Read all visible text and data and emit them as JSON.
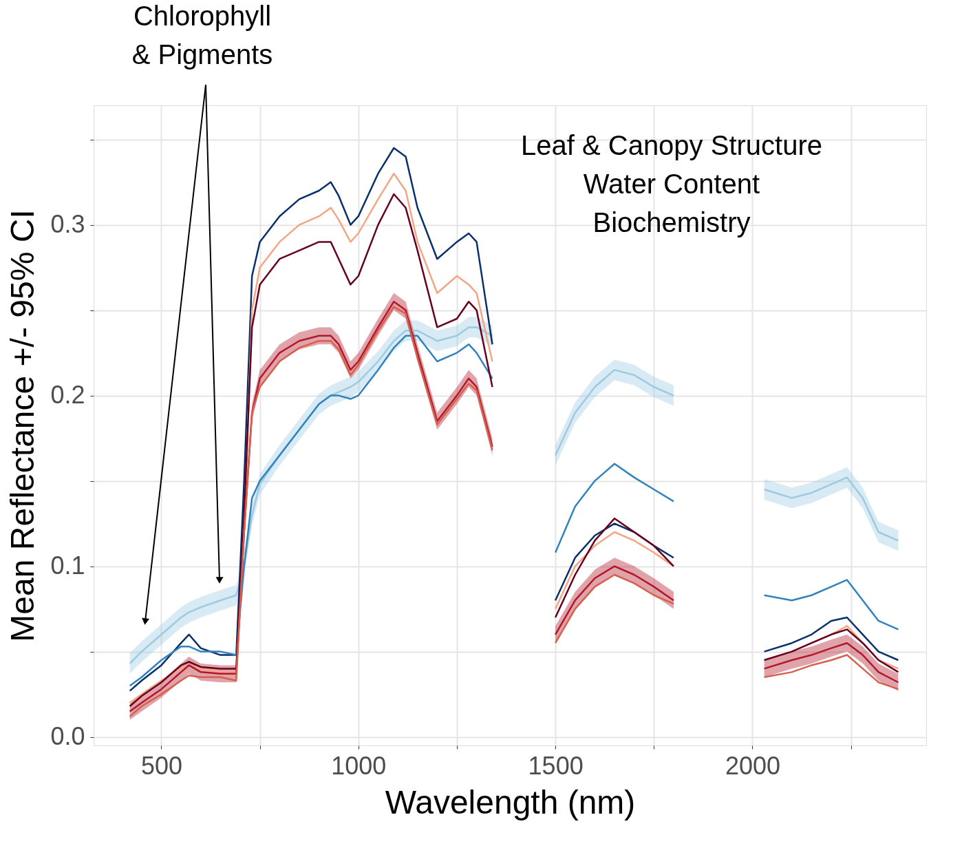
{
  "chart_data": {
    "type": "line",
    "xlabel": "Wavelength (nm)",
    "ylabel": "Mean Reflectance +/- 95% CI",
    "annotations": [
      "Chlorophyll\n& Pigments",
      "Leaf & Canopy Structure\nWater Content\nBiochemistry"
    ],
    "x": [
      420,
      450,
      500,
      550,
      570,
      600,
      650,
      690,
      710,
      730,
      750,
      800,
      850,
      900,
      930,
      950,
      980,
      1000,
      1050,
      1090,
      1120,
      1150,
      1200,
      1250,
      1280,
      1300,
      1340,
      1400,
      1500,
      1550,
      1600,
      1650,
      1700,
      1750,
      1800,
      1900,
      2030,
      2100,
      2150,
      2200,
      2240,
      2280,
      2320,
      2370
    ],
    "xlim": [
      328,
      2441
    ],
    "ylim": [
      -0.005,
      0.37
    ],
    "xticks": [
      500,
      {
        "value": 750,
        "label": null
      },
      1000,
      {
        "value": 1250,
        "label": null
      },
      1500,
      {
        "value": 1750,
        "label": null
      },
      2000,
      {
        "value": 2250,
        "label": null
      }
    ],
    "yticks": [
      {
        "value": 0,
        "label": "0.0"
      },
      {
        "value": 0.05,
        "label": null
      },
      0.1,
      {
        "value": 0.15,
        "label": null
      },
      0.2,
      {
        "value": 0.25,
        "label": null
      },
      0.3,
      {
        "value": 0.35,
        "label": null
      }
    ],
    "grid": true,
    "legend": false,
    "line_style": "solid",
    "series": [
      {
        "color": "#9ecae1",
        "values": [
          0.043,
          0.05,
          0.06,
          0.07,
          0.073,
          0.076,
          0.08,
          0.083,
          0.1,
          0.13,
          0.148,
          0.165,
          0.18,
          0.195,
          0.2,
          0.202,
          0.205,
          0.208,
          0.22,
          0.232,
          0.238,
          0.238,
          0.232,
          0.235,
          0.24,
          0.24,
          0.235,
          null,
          0.165,
          0.19,
          0.205,
          0.215,
          0.212,
          0.205,
          0.2,
          null,
          0.145,
          0.14,
          0.143,
          0.148,
          0.152,
          0.14,
          0.12,
          0.115
        ],
        "lower": [
          0.037,
          0.044,
          0.054,
          0.064,
          0.067,
          0.07,
          0.074,
          0.077,
          0.094,
          0.124,
          0.142,
          0.159,
          0.174,
          0.189,
          0.194,
          0.196,
          0.199,
          0.202,
          0.214,
          0.226,
          0.232,
          0.232,
          0.226,
          0.229,
          0.234,
          0.234,
          0.229,
          null,
          0.159,
          0.184,
          0.199,
          0.209,
          0.206,
          0.199,
          0.194,
          null,
          0.139,
          0.134,
          0.137,
          0.142,
          0.146,
          0.134,
          0.114,
          0.109
        ],
        "upper": [
          0.049,
          0.056,
          0.066,
          0.076,
          0.079,
          0.082,
          0.086,
          0.089,
          0.106,
          0.136,
          0.154,
          0.171,
          0.186,
          0.201,
          0.206,
          0.208,
          0.211,
          0.214,
          0.226,
          0.238,
          0.244,
          0.244,
          0.238,
          0.241,
          0.246,
          0.246,
          0.241,
          null,
          0.171,
          0.196,
          0.211,
          0.221,
          0.218,
          0.211,
          0.206,
          null,
          0.151,
          0.146,
          0.149,
          0.154,
          0.158,
          0.146,
          0.126,
          0.121
        ]
      },
      {
        "color": "#08306b",
        "values": [
          0.027,
          0.033,
          0.042,
          0.055,
          0.06,
          0.052,
          0.048,
          0.048,
          0.15,
          0.27,
          0.29,
          0.305,
          0.315,
          0.32,
          0.325,
          0.317,
          0.3,
          0.305,
          0.33,
          0.345,
          0.34,
          0.31,
          0.28,
          0.29,
          0.295,
          0.29,
          0.23,
          null,
          0.08,
          0.105,
          0.118,
          0.125,
          0.12,
          0.112,
          0.105,
          null,
          0.05,
          0.055,
          0.06,
          0.068,
          0.07,
          0.06,
          0.05,
          0.045
        ]
      },
      {
        "color": "#3182bd",
        "values": [
          0.03,
          0.035,
          0.045,
          0.053,
          0.053,
          0.05,
          0.05,
          0.048,
          0.1,
          0.14,
          0.15,
          0.165,
          0.18,
          0.195,
          0.2,
          0.2,
          0.198,
          0.2,
          0.215,
          0.228,
          0.235,
          0.235,
          0.22,
          0.225,
          0.23,
          0.225,
          0.21,
          null,
          0.108,
          0.135,
          0.15,
          0.16,
          0.152,
          0.145,
          0.138,
          null,
          0.083,
          0.08,
          0.083,
          0.088,
          0.092,
          0.08,
          0.068,
          0.063
        ]
      },
      {
        "color": "#f4a582",
        "values": [
          0.02,
          0.025,
          0.033,
          0.04,
          0.042,
          0.04,
          0.038,
          0.038,
          0.12,
          0.25,
          0.275,
          0.29,
          0.3,
          0.305,
          0.31,
          0.303,
          0.29,
          0.295,
          0.315,
          0.33,
          0.32,
          0.29,
          0.26,
          0.27,
          0.265,
          0.26,
          0.22,
          null,
          0.075,
          0.1,
          0.112,
          0.12,
          0.115,
          0.108,
          0.1,
          null,
          0.045,
          0.05,
          0.055,
          0.06,
          0.065,
          0.055,
          0.045,
          0.04
        ]
      },
      {
        "color": "#67001f",
        "values": [
          0.018,
          0.024,
          0.032,
          0.042,
          0.044,
          0.041,
          0.04,
          0.04,
          0.13,
          0.24,
          0.265,
          0.28,
          0.285,
          0.29,
          0.29,
          0.28,
          0.265,
          0.27,
          0.3,
          0.318,
          0.31,
          0.285,
          0.24,
          0.245,
          0.255,
          0.25,
          0.205,
          null,
          0.07,
          0.095,
          0.115,
          0.128,
          0.12,
          0.112,
          0.1,
          null,
          0.045,
          0.05,
          0.055,
          0.06,
          0.063,
          0.055,
          0.045,
          0.038
        ]
      },
      {
        "color": "#b2182b",
        "values": [
          0.015,
          0.02,
          0.028,
          0.038,
          0.042,
          0.038,
          0.037,
          0.037,
          0.12,
          0.19,
          0.21,
          0.225,
          0.232,
          0.235,
          0.235,
          0.23,
          0.215,
          0.22,
          0.24,
          0.255,
          0.25,
          0.225,
          0.185,
          0.2,
          0.21,
          0.205,
          0.17,
          null,
          0.06,
          0.08,
          0.093,
          0.1,
          0.095,
          0.088,
          0.08,
          null,
          0.04,
          0.045,
          0.048,
          0.052,
          0.055,
          0.048,
          0.038,
          0.032
        ],
        "lower": [
          0.01,
          0.015,
          0.023,
          0.033,
          0.037,
          0.033,
          0.032,
          0.032,
          0.115,
          0.185,
          0.205,
          0.22,
          0.227,
          0.23,
          0.23,
          0.225,
          0.21,
          0.215,
          0.235,
          0.25,
          0.245,
          0.22,
          0.18,
          0.195,
          0.205,
          0.2,
          0.165,
          null,
          0.055,
          0.075,
          0.088,
          0.095,
          0.09,
          0.083,
          0.075,
          null,
          0.035,
          0.04,
          0.043,
          0.047,
          0.05,
          0.043,
          0.033,
          0.027
        ],
        "upper": [
          0.02,
          0.025,
          0.033,
          0.043,
          0.047,
          0.043,
          0.042,
          0.042,
          0.125,
          0.195,
          0.215,
          0.23,
          0.237,
          0.24,
          0.24,
          0.235,
          0.22,
          0.225,
          0.245,
          0.26,
          0.255,
          0.23,
          0.19,
          0.205,
          0.215,
          0.21,
          0.175,
          null,
          0.065,
          0.085,
          0.098,
          0.105,
          0.1,
          0.093,
          0.085,
          null,
          0.045,
          0.05,
          0.053,
          0.057,
          0.06,
          0.053,
          0.043,
          0.037
        ]
      },
      {
        "color": "#d6604d",
        "values": [
          0.012,
          0.018,
          0.025,
          0.033,
          0.036,
          0.035,
          0.035,
          0.033,
          0.12,
          0.19,
          0.205,
          0.22,
          0.228,
          0.232,
          0.232,
          0.227,
          0.212,
          0.218,
          0.238,
          0.252,
          0.248,
          0.222,
          0.183,
          0.198,
          0.207,
          0.203,
          0.168,
          null,
          0.055,
          0.075,
          0.088,
          0.095,
          0.09,
          0.083,
          0.078,
          null,
          0.035,
          0.038,
          0.042,
          0.045,
          0.048,
          0.04,
          0.032,
          0.028
        ]
      }
    ]
  }
}
